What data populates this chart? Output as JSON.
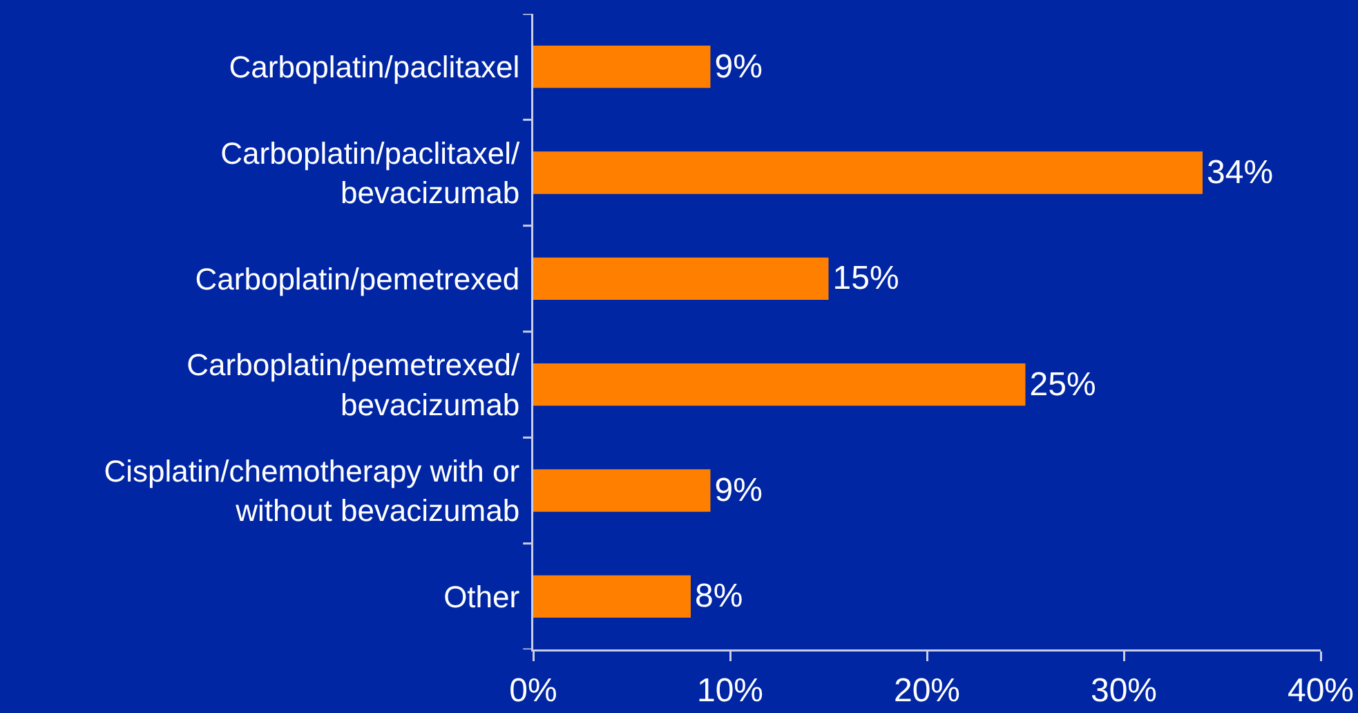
{
  "chart_data": {
    "type": "bar",
    "orientation": "horizontal",
    "categories": [
      "Carboplatin/paclitaxel",
      "Carboplatin/paclitaxel/\nbevacizumab",
      "Carboplatin/pemetrexed",
      "Carboplatin/pemetrexed/\nbevacizumab",
      "Cisplatin/chemotherapy with or\nwithout bevacizumab",
      "Other"
    ],
    "values": [
      9,
      34,
      15,
      25,
      9,
      8
    ],
    "color": "#ff7f00",
    "value_labels": [
      "9%",
      "34%",
      "15%",
      "25%",
      "9%",
      "8%"
    ],
    "xlim": [
      0,
      40
    ],
    "xticks": [
      {
        "value": 0,
        "label": "0%"
      },
      {
        "value": 10,
        "label": "10%"
      },
      {
        "value": 20,
        "label": "20%"
      },
      {
        "value": 30,
        "label": "30%"
      },
      {
        "value": 40,
        "label": "40%"
      }
    ]
  }
}
